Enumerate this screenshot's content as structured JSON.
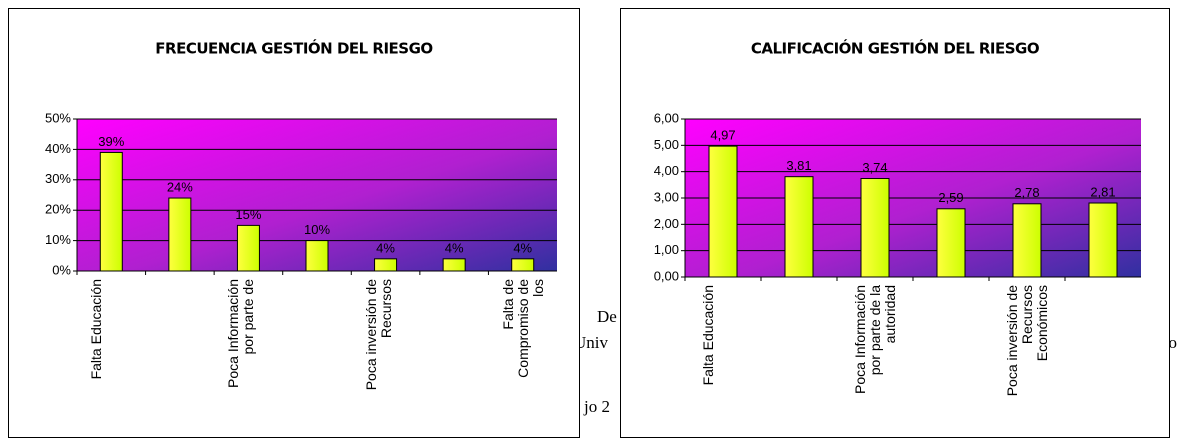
{
  "chart_data": [
    {
      "type": "bar",
      "title": "FRECUENCIA GESTIÓN DEL RIESGO",
      "categories": [
        "Falta Educación",
        null,
        "Poca Información por parte de",
        null,
        "Poca inversión de Recursos",
        null,
        "Falta de Compromiso de los"
      ],
      "values": [
        39,
        24,
        15,
        10,
        4,
        4,
        4
      ],
      "value_labels": [
        "39%",
        "24%",
        "15%",
        "10%",
        "4%",
        "4%",
        "4%"
      ],
      "color": "#ccff00",
      "ylim": [
        0,
        50
      ],
      "yticks": [
        {
          "value": 0,
          "label": "0%"
        },
        {
          "value": 10,
          "label": "10%"
        },
        {
          "value": 20,
          "label": "20%"
        },
        {
          "value": 30,
          "label": "30%"
        },
        {
          "value": 40,
          "label": "40%"
        },
        {
          "value": 50,
          "label": "50%"
        }
      ],
      "grid": true
    },
    {
      "type": "bar",
      "title": "CALIFICACIÓN GESTIÓN DEL RIESGO",
      "categories": [
        "Falta Educación",
        null,
        "Poca Información por parte de la autoridad",
        null,
        "Poca inversión de Recursos Económicos",
        null
      ],
      "values": [
        4.97,
        3.81,
        3.74,
        2.59,
        2.78,
        2.81
      ],
      "value_labels": [
        "4,97",
        "3,81",
        "3,74",
        "2,59",
        "2,78",
        "2,81"
      ],
      "color": "#ccff00",
      "ylim": [
        0,
        6
      ],
      "yticks": [
        {
          "value": 0,
          "label": "0,00"
        },
        {
          "value": 1,
          "label": "1,00"
        },
        {
          "value": 2,
          "label": "2,00"
        },
        {
          "value": 3,
          "label": "3,00"
        },
        {
          "value": 4,
          "label": "4,00"
        },
        {
          "value": 5,
          "label": "5,00"
        },
        {
          "value": 6,
          "label": "6,00"
        }
      ],
      "grid": true
    }
  ],
  "background_text": [
    "De",
    "Univ",
    "jo 2",
    "ño"
  ]
}
